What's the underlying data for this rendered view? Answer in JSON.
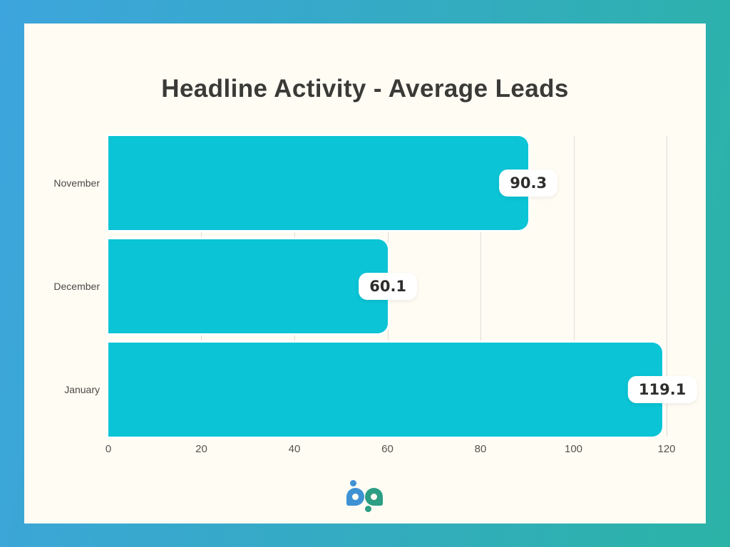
{
  "frame": {
    "gradient_left_color": "#3DA5DD",
    "gradient_right_color": "#2BB3A6",
    "card_background": "#FFFCF4"
  },
  "chart_data": {
    "type": "bar",
    "orientation": "horizontal",
    "title": "Headline Activity - Average Leads",
    "categories": [
      "November",
      "December",
      "January"
    ],
    "values": [
      90.3,
      60.1,
      119.1
    ],
    "value_labels": [
      "90.3",
      "60.1",
      "119.1"
    ],
    "xlabel": "",
    "ylabel": "",
    "xlim": [
      0,
      120
    ],
    "xticks": [
      0,
      20,
      40,
      60,
      80,
      100,
      120
    ],
    "grid": "vertical-only",
    "bar_color": "#0BC4D5",
    "gridline_color": "#DEDCD4",
    "value_label_style": "white rounded chip at bar end",
    "legend": "none"
  },
  "logo": {
    "name": "bp",
    "blue": "#3E92D4",
    "teal": "#2C9E84"
  }
}
